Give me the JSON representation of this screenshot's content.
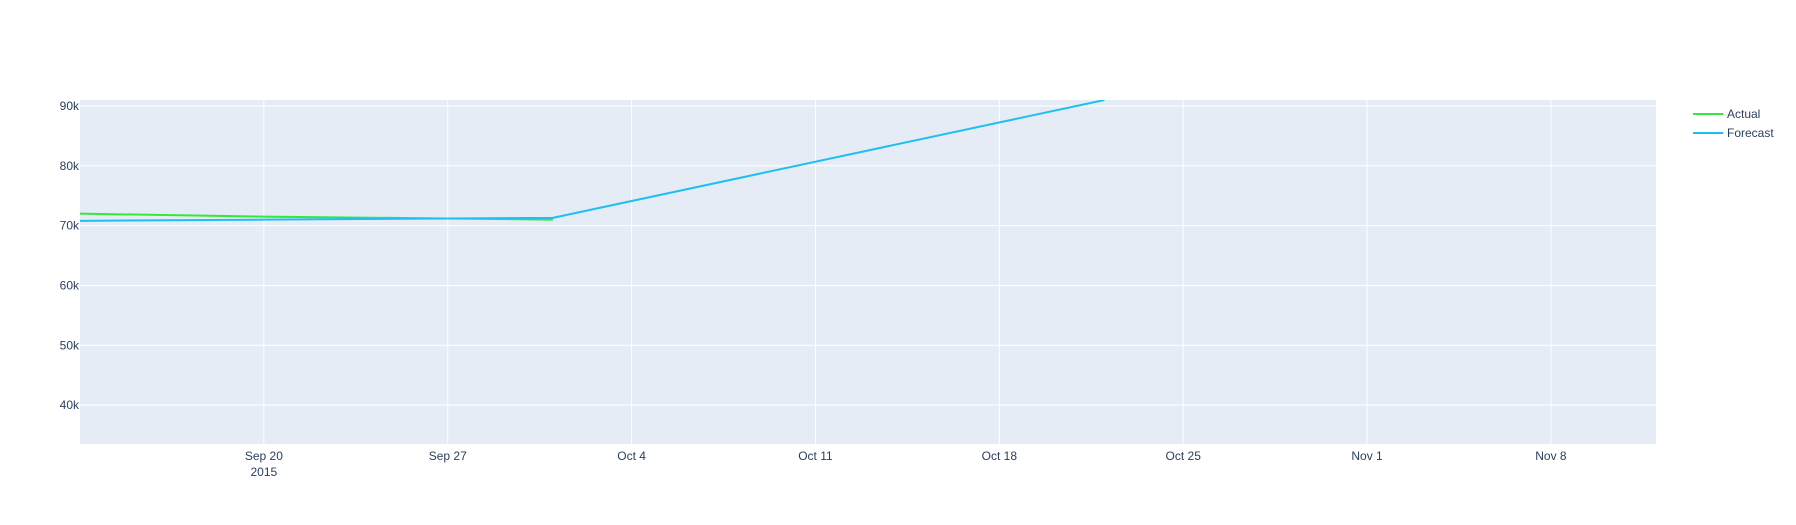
{
  "chart_data": {
    "type": "line",
    "title": "",
    "xlabel": "",
    "ylabel": "",
    "xlim": [
      "2015-09-13",
      "2015-11-12"
    ],
    "ylim": [
      33500,
      91000
    ],
    "grid": true,
    "legend_placement": "top-right",
    "x_ticks": [
      {
        "date": "2015-09-20",
        "label": "Sep 20",
        "sublabel": "2015"
      },
      {
        "date": "2015-09-27",
        "label": "Sep 27",
        "sublabel": ""
      },
      {
        "date": "2015-10-04",
        "label": "Oct 4",
        "sublabel": ""
      },
      {
        "date": "2015-10-11",
        "label": "Oct 11",
        "sublabel": ""
      },
      {
        "date": "2015-10-18",
        "label": "Oct 18",
        "sublabel": ""
      },
      {
        "date": "2015-10-25",
        "label": "Oct 25",
        "sublabel": ""
      },
      {
        "date": "2015-11-01",
        "label": "Nov 1",
        "sublabel": ""
      },
      {
        "date": "2015-11-08",
        "label": "Nov 8",
        "sublabel": ""
      }
    ],
    "y_ticks": [
      {
        "value": 40000,
        "label": "40k"
      },
      {
        "value": 50000,
        "label": "50k"
      },
      {
        "value": 60000,
        "label": "60k"
      },
      {
        "value": 70000,
        "label": "70k"
      },
      {
        "value": 80000,
        "label": "80k"
      },
      {
        "value": 90000,
        "label": "90k"
      }
    ],
    "series": [
      {
        "name": "Actual",
        "color": "#33e83a",
        "points": [
          {
            "x": "2015-09-13",
            "y": 72000
          },
          {
            "x": "2015-09-20",
            "y": 71500
          },
          {
            "x": "2015-09-27",
            "y": 71200
          },
          {
            "x": "2015-10-01",
            "y": 71000
          }
        ]
      },
      {
        "name": "Forecast",
        "color": "#1fbfef",
        "points": [
          {
            "x": "2015-09-13",
            "y": 70800
          },
          {
            "x": "2015-09-20",
            "y": 71000
          },
          {
            "x": "2015-09-27",
            "y": 71200
          },
          {
            "x": "2015-10-01",
            "y": 71300
          },
          {
            "x": "2015-10-22",
            "y": 91000
          }
        ]
      }
    ],
    "colors": {
      "plot_bg": "#e5ecf6",
      "grid": "#ffffff",
      "text": "#2a3f5f"
    }
  }
}
